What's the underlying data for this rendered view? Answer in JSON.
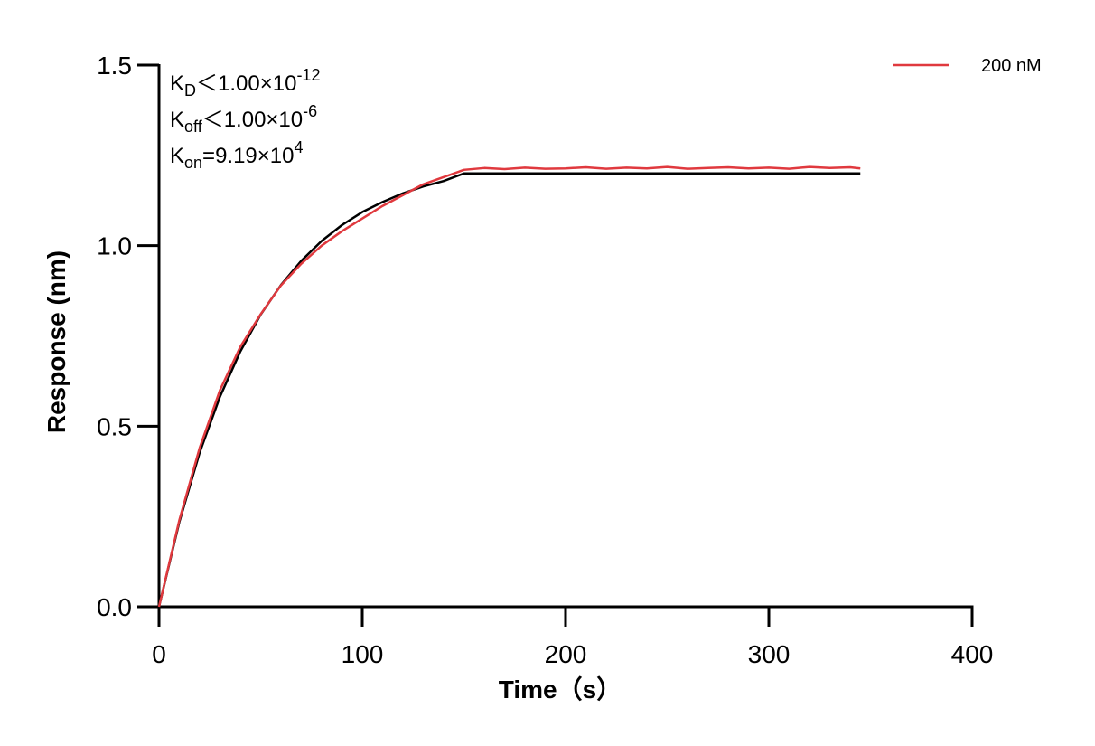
{
  "chart_data": {
    "type": "line",
    "x_label": "Time（s）",
    "y_label": "Response (nm)",
    "x": [
      0,
      10,
      20,
      30,
      40,
      50,
      60,
      70,
      80,
      90,
      100,
      110,
      120,
      130,
      140,
      150,
      160,
      170,
      180,
      190,
      200,
      210,
      220,
      230,
      240,
      250,
      260,
      270,
      280,
      290,
      300,
      310,
      320,
      330,
      340,
      345
    ],
    "series": [
      {
        "color": "#000000",
        "values": [
          0,
          0.235,
          0.427,
          0.582,
          0.707,
          0.809,
          0.891,
          0.958,
          1.013,
          1.057,
          1.093,
          1.121,
          1.145,
          1.164,
          1.179,
          1.2,
          1.2,
          1.2,
          1.2,
          1.2,
          1.2,
          1.2,
          1.2,
          1.2,
          1.2,
          1.2,
          1.2,
          1.2,
          1.2,
          1.2,
          1.2,
          1.2,
          1.2,
          1.2,
          1.2,
          1.2
        ]
      },
      {
        "name": "200 nM",
        "color": "#e0393e",
        "values": [
          0,
          0.24,
          0.44,
          0.6,
          0.72,
          0.81,
          0.89,
          0.95,
          1.0,
          1.04,
          1.075,
          1.11,
          1.14,
          1.17,
          1.19,
          1.21,
          1.215,
          1.212,
          1.216,
          1.213,
          1.214,
          1.217,
          1.213,
          1.216,
          1.214,
          1.218,
          1.213,
          1.215,
          1.217,
          1.214,
          1.216,
          1.213,
          1.218,
          1.215,
          1.217,
          1.214
        ]
      }
    ],
    "xlim": [
      0,
      400
    ],
    "xticks": [
      0,
      100,
      200,
      300,
      400
    ],
    "ylim": [
      0,
      1.5
    ],
    "yticks": [
      {
        "value": 0,
        "label": "0.0"
      },
      0.5,
      {
        "value": 1,
        "label": "1.0"
      },
      1.5
    ],
    "legend": "top-right",
    "annotations": [
      {
        "base": "K",
        "sub": "D",
        "text": "＜1.00×10",
        "sup": "-12"
      },
      {
        "base": "K",
        "sub": "off",
        "text": "＜1.00×10",
        "sup": "-6"
      },
      {
        "base": "K",
        "sub": "on",
        "text": "=9.19×10",
        "sup": "4"
      }
    ]
  }
}
